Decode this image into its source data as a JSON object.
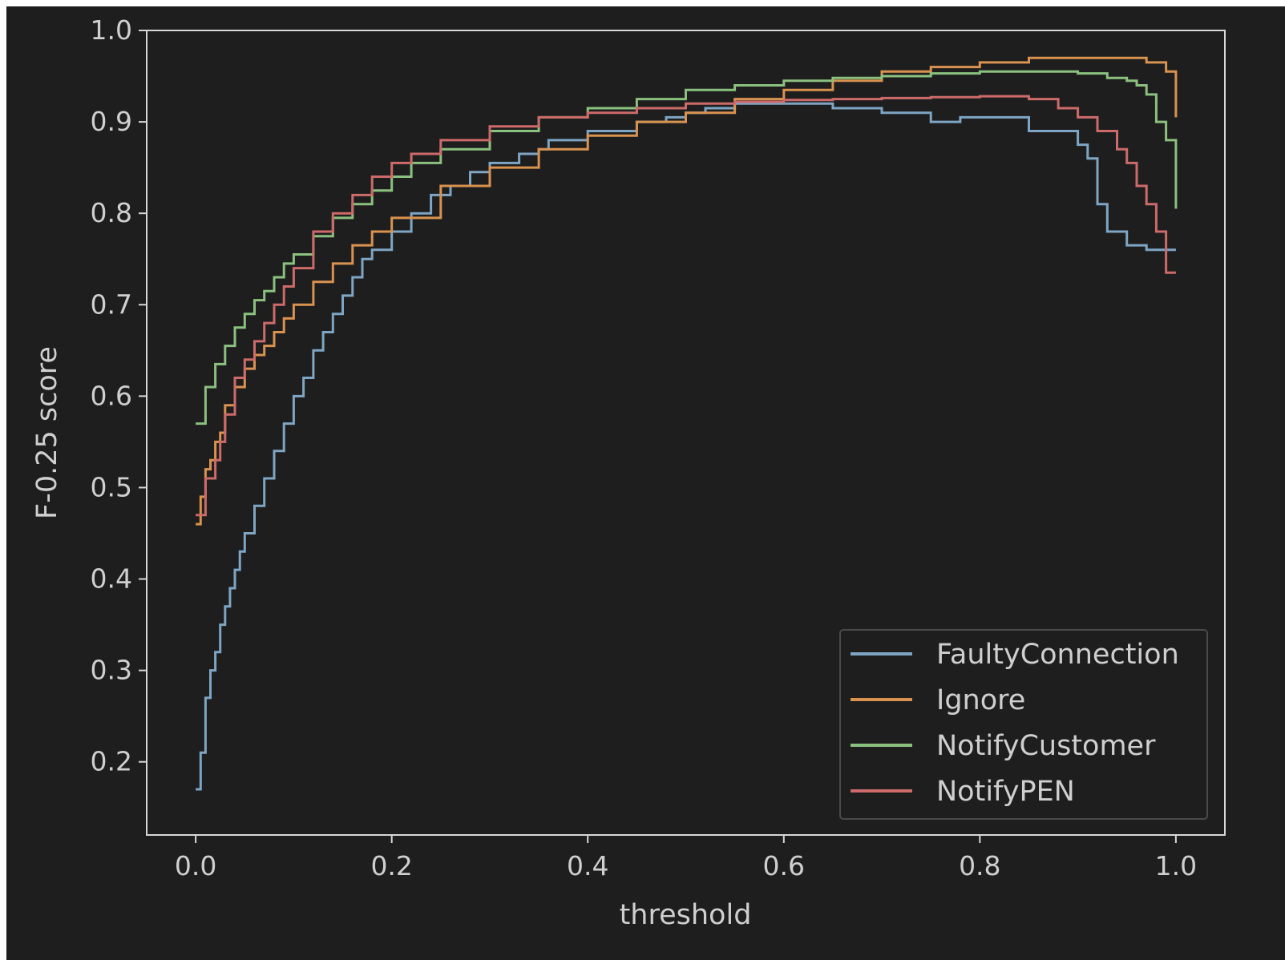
{
  "chart_data": {
    "type": "line",
    "title": "",
    "xlabel": "threshold",
    "ylabel": "F-0.25 score",
    "xlim": [
      -0.05,
      1.05
    ],
    "ylim": [
      0.12,
      1.0
    ],
    "xticks": [
      "0.0",
      "0.2",
      "0.4",
      "0.6",
      "0.8",
      "1.0"
    ],
    "yticks": [
      "0.2",
      "0.3",
      "0.4",
      "0.5",
      "0.6",
      "0.7",
      "0.8",
      "0.9",
      "1.0"
    ],
    "grid": false,
    "legend_position": "lower-right",
    "series": [
      {
        "name": "FaultyConnection",
        "color": "#7ea6c4",
        "x": [
          0.0,
          0.005,
          0.01,
          0.015,
          0.02,
          0.025,
          0.03,
          0.035,
          0.04,
          0.045,
          0.05,
          0.06,
          0.07,
          0.08,
          0.09,
          0.1,
          0.11,
          0.12,
          0.13,
          0.14,
          0.15,
          0.16,
          0.17,
          0.18,
          0.2,
          0.22,
          0.24,
          0.26,
          0.28,
          0.3,
          0.33,
          0.35,
          0.36,
          0.4,
          0.45,
          0.48,
          0.5,
          0.52,
          0.55,
          0.6,
          0.65,
          0.7,
          0.75,
          0.78,
          0.8,
          0.85,
          0.9,
          0.91,
          0.92,
          0.93,
          0.95,
          0.97,
          1.0
        ],
        "y": [
          0.17,
          0.21,
          0.27,
          0.3,
          0.32,
          0.35,
          0.37,
          0.39,
          0.41,
          0.43,
          0.45,
          0.48,
          0.51,
          0.54,
          0.57,
          0.6,
          0.62,
          0.65,
          0.67,
          0.69,
          0.71,
          0.73,
          0.75,
          0.76,
          0.78,
          0.8,
          0.82,
          0.83,
          0.845,
          0.855,
          0.865,
          0.87,
          0.88,
          0.89,
          0.9,
          0.905,
          0.91,
          0.915,
          0.92,
          0.92,
          0.915,
          0.91,
          0.9,
          0.905,
          0.905,
          0.89,
          0.875,
          0.86,
          0.81,
          0.78,
          0.765,
          0.76,
          0.76
        ]
      },
      {
        "name": "Ignore",
        "color": "#d9924f",
        "x": [
          0.0,
          0.005,
          0.01,
          0.015,
          0.02,
          0.025,
          0.03,
          0.04,
          0.05,
          0.06,
          0.07,
          0.08,
          0.09,
          0.1,
          0.12,
          0.14,
          0.16,
          0.18,
          0.2,
          0.25,
          0.3,
          0.35,
          0.4,
          0.45,
          0.5,
          0.55,
          0.6,
          0.65,
          0.7,
          0.75,
          0.8,
          0.85,
          0.9,
          0.95,
          0.97,
          0.99,
          1.0
        ],
        "y": [
          0.46,
          0.49,
          0.52,
          0.53,
          0.55,
          0.56,
          0.59,
          0.61,
          0.63,
          0.645,
          0.655,
          0.67,
          0.685,
          0.7,
          0.725,
          0.745,
          0.765,
          0.78,
          0.795,
          0.83,
          0.85,
          0.87,
          0.885,
          0.9,
          0.91,
          0.925,
          0.935,
          0.945,
          0.955,
          0.96,
          0.965,
          0.97,
          0.97,
          0.97,
          0.965,
          0.955,
          0.905
        ]
      },
      {
        "name": "NotifyCustomer",
        "color": "#8bc17f",
        "x": [
          0.0,
          0.01,
          0.02,
          0.03,
          0.04,
          0.05,
          0.06,
          0.07,
          0.08,
          0.09,
          0.1,
          0.12,
          0.14,
          0.16,
          0.18,
          0.2,
          0.22,
          0.25,
          0.3,
          0.35,
          0.4,
          0.45,
          0.5,
          0.55,
          0.6,
          0.65,
          0.7,
          0.75,
          0.8,
          0.85,
          0.9,
          0.93,
          0.95,
          0.96,
          0.97,
          0.98,
          0.99,
          1.0
        ],
        "y": [
          0.57,
          0.61,
          0.635,
          0.655,
          0.675,
          0.69,
          0.705,
          0.715,
          0.73,
          0.745,
          0.755,
          0.775,
          0.795,
          0.81,
          0.825,
          0.84,
          0.855,
          0.87,
          0.89,
          0.905,
          0.915,
          0.925,
          0.935,
          0.94,
          0.945,
          0.948,
          0.95,
          0.953,
          0.955,
          0.955,
          0.953,
          0.948,
          0.945,
          0.94,
          0.93,
          0.9,
          0.88,
          0.805
        ]
      },
      {
        "name": "NotifyPEN",
        "color": "#cd6a6a",
        "x": [
          0.0,
          0.005,
          0.01,
          0.02,
          0.025,
          0.03,
          0.04,
          0.05,
          0.06,
          0.07,
          0.08,
          0.09,
          0.1,
          0.12,
          0.14,
          0.16,
          0.18,
          0.2,
          0.22,
          0.25,
          0.3,
          0.35,
          0.4,
          0.45,
          0.5,
          0.55,
          0.6,
          0.65,
          0.7,
          0.75,
          0.8,
          0.85,
          0.88,
          0.9,
          0.92,
          0.94,
          0.95,
          0.96,
          0.97,
          0.98,
          0.99,
          1.0
        ],
        "y": [
          0.47,
          0.47,
          0.51,
          0.53,
          0.55,
          0.58,
          0.62,
          0.64,
          0.66,
          0.68,
          0.7,
          0.72,
          0.74,
          0.78,
          0.8,
          0.82,
          0.84,
          0.855,
          0.865,
          0.88,
          0.895,
          0.905,
          0.91,
          0.915,
          0.92,
          0.922,
          0.924,
          0.925,
          0.926,
          0.927,
          0.928,
          0.925,
          0.915,
          0.905,
          0.89,
          0.87,
          0.855,
          0.83,
          0.81,
          0.78,
          0.735,
          0.735
        ]
      }
    ]
  }
}
